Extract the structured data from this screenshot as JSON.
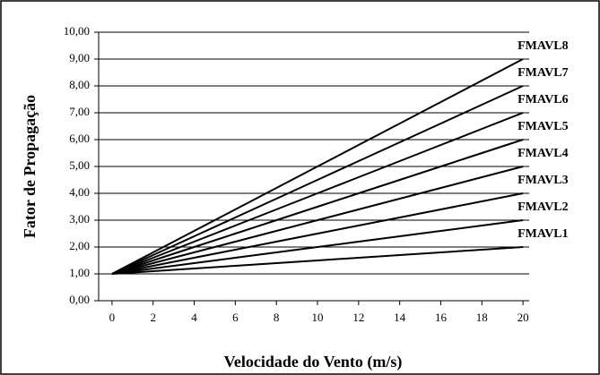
{
  "chart_data": {
    "type": "line",
    "x_label": "Velocidade do Vento (m/s)",
    "y_label": "Fator de Propagação",
    "x": [
      0,
      2,
      4,
      6,
      8,
      10,
      12,
      14,
      16,
      18,
      20
    ],
    "series": [
      {
        "name": "FMAVL1",
        "color": "#000000",
        "values": [
          1,
          1.1,
          1.2,
          1.3,
          1.4,
          1.5,
          1.6,
          1.7,
          1.8,
          1.9,
          2
        ]
      },
      {
        "name": "FMAVL2",
        "color": "#000000",
        "values": [
          1,
          1.2,
          1.4,
          1.6,
          1.8,
          2,
          2.2,
          2.4,
          2.6,
          2.8,
          3
        ]
      },
      {
        "name": "FMAVL3",
        "color": "#000000",
        "values": [
          1,
          1.3,
          1.6,
          1.9,
          2.2,
          2.5,
          2.8,
          3.1,
          3.4,
          3.7,
          4
        ]
      },
      {
        "name": "FMAVL4",
        "color": "#000000",
        "values": [
          1,
          1.4,
          1.8,
          2.2,
          2.6,
          3,
          3.4,
          3.8,
          4.2,
          4.6,
          5
        ]
      },
      {
        "name": "FMAVL5",
        "color": "#000000",
        "values": [
          1,
          1.5,
          2,
          2.5,
          3,
          3.5,
          4,
          4.5,
          5,
          5.5,
          6
        ]
      },
      {
        "name": "FMAVL6",
        "color": "#000000",
        "values": [
          1,
          1.6,
          2.2,
          2.8,
          3.4,
          4,
          4.6,
          5.2,
          5.8,
          6.4,
          7
        ]
      },
      {
        "name": "FMAVL7",
        "color": "#000000",
        "values": [
          1,
          1.7,
          2.4,
          3.1,
          3.8,
          4.5,
          5.2,
          5.9,
          6.6,
          7.3,
          8
        ]
      },
      {
        "name": "FMAVL8",
        "color": "#000000",
        "values": [
          1,
          1.8,
          2.6,
          3.4,
          4.2,
          5,
          5.8,
          6.6,
          7.4,
          8.2,
          9
        ]
      }
    ],
    "xlim": [
      -0.65,
      20.3
    ],
    "xticks": [
      0,
      2,
      4,
      6,
      8,
      10,
      12,
      14,
      16,
      18,
      20
    ],
    "ylim": [
      0,
      10
    ],
    "yticks": [
      {
        "value": 0,
        "label": "0,00"
      },
      {
        "value": 1,
        "label": "1,00"
      },
      {
        "value": 2,
        "label": "2,00"
      },
      {
        "value": 3,
        "label": "3,00"
      },
      {
        "value": 4,
        "label": "4,00"
      },
      {
        "value": 5,
        "label": "5,00"
      },
      {
        "value": 6,
        "label": "6,00"
      },
      {
        "value": 7,
        "label": "7,00"
      },
      {
        "value": 8,
        "label": "8,00"
      },
      {
        "value": 9,
        "label": "9,00"
      },
      {
        "value": 10,
        "label": "10,00"
      }
    ],
    "grid": true
  }
}
